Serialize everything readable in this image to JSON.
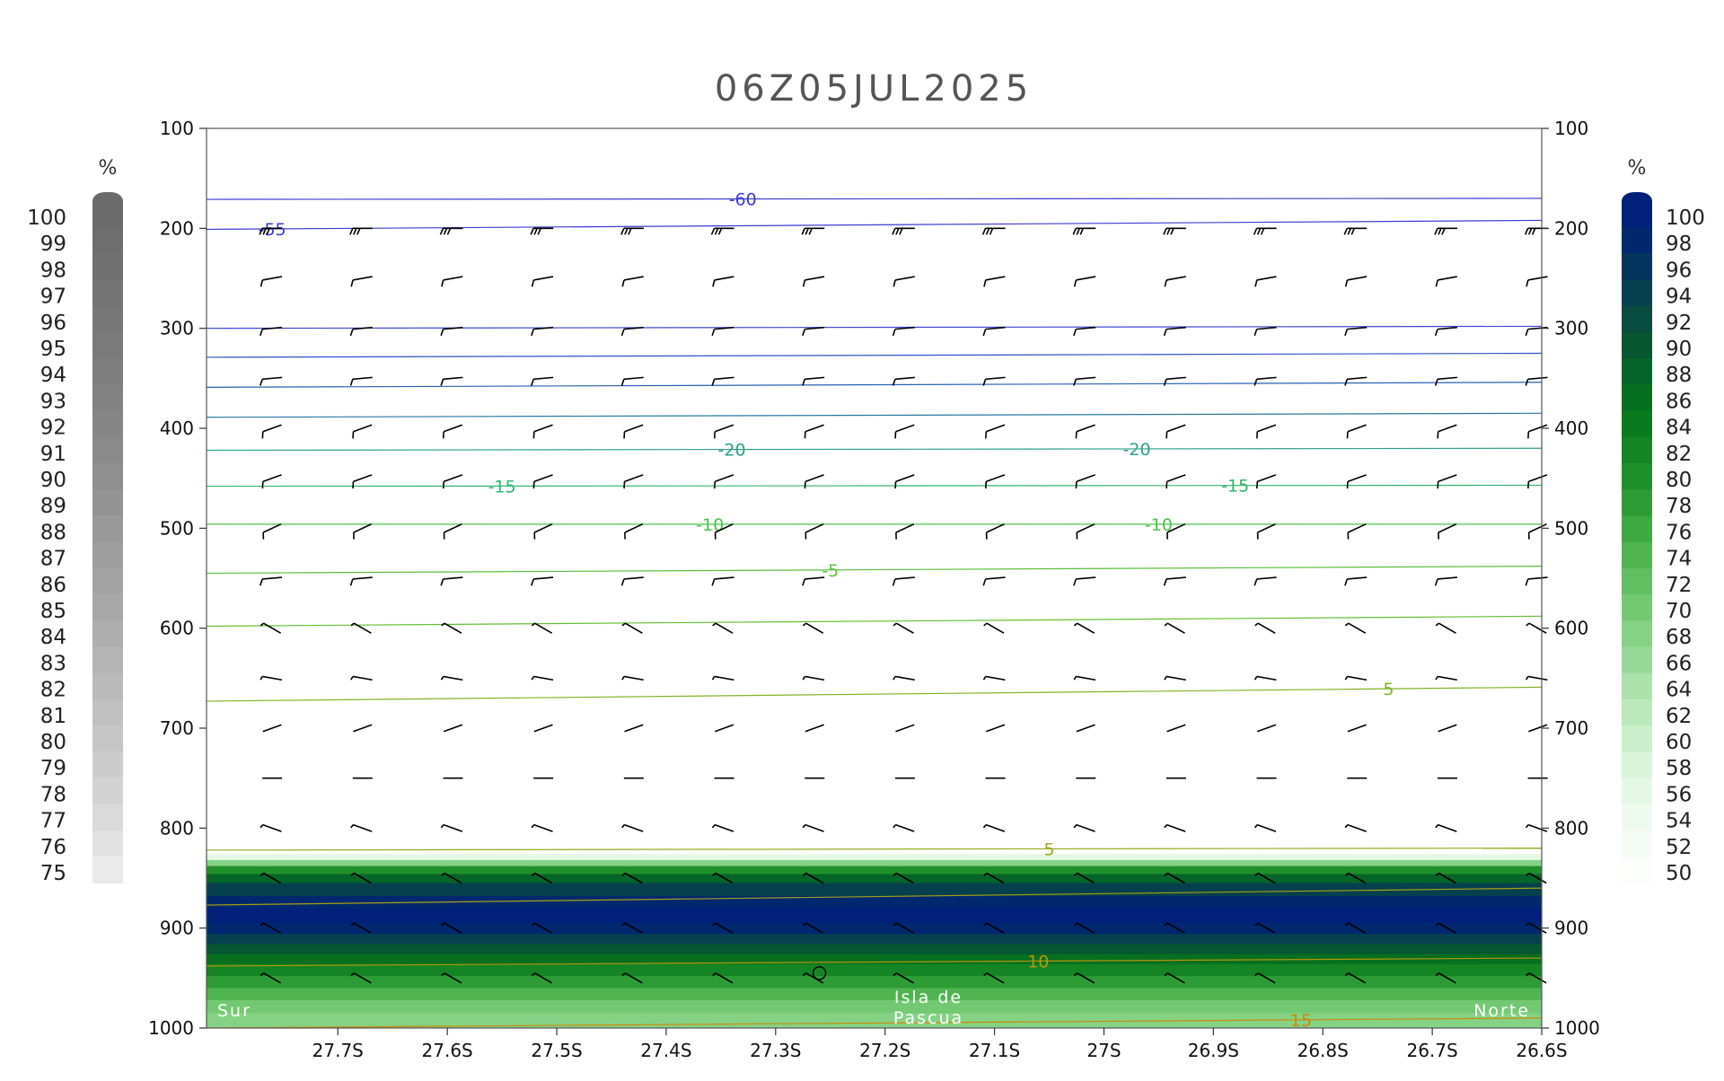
{
  "chart_data": {
    "type": "cross-section",
    "title": "06Z05JUL2025",
    "x_ticks": [
      "27.7S",
      "27.6S",
      "27.5S",
      "27.4S",
      "27.3S",
      "27.2S",
      "27.1S",
      "27S",
      "26.9S",
      "26.8S",
      "26.7S",
      "26.6S"
    ],
    "x_tick_values": [
      -27.7,
      -27.6,
      -27.5,
      -27.4,
      -27.3,
      -27.2,
      -27.1,
      -27.0,
      -26.9,
      -26.8,
      -26.7,
      -26.6
    ],
    "xlim": [
      -27.82,
      -26.6
    ],
    "y_ticks_left": [
      "100",
      "200",
      "300",
      "400",
      "500",
      "600",
      "700",
      "800",
      "900",
      "1000"
    ],
    "y_ticks_right": [
      "100",
      "200",
      "300",
      "400",
      "500",
      "600",
      "700",
      "800",
      "900",
      "1000"
    ],
    "y_tick_values": [
      100,
      200,
      300,
      400,
      500,
      600,
      700,
      800,
      900,
      1000
    ],
    "ylim": [
      100,
      1000
    ],
    "y_scale": "linear, pressure increasing downward (hPa)",
    "location_labels": {
      "left": "Sur",
      "center": "Isla de\nPascua",
      "right": "Norte"
    },
    "legend_left": {
      "unit": "%",
      "labels": [
        "100",
        "99",
        "98",
        "97",
        "96",
        "95",
        "94",
        "93",
        "92",
        "91",
        "90",
        "89",
        "88",
        "87",
        "86",
        "85",
        "84",
        "83",
        "82",
        "81",
        "80",
        "79",
        "78",
        "77",
        "76",
        "75"
      ],
      "colors": [
        "#6b6b6b",
        "#6e6e6e",
        "#717171",
        "#747474",
        "#777777",
        "#7a7a7a",
        "#7e7e7e",
        "#828282",
        "#868686",
        "#8a8a8a",
        "#8f8f8f",
        "#949494",
        "#999999",
        "#9e9e9e",
        "#a3a3a3",
        "#a8a8a8",
        "#aeaeae",
        "#b4b4b4",
        "#bababa",
        "#c0c0c0",
        "#c6c6c6",
        "#cccccc",
        "#d3d3d3",
        "#dadada",
        "#e2e2e2",
        "#eaeaea"
      ]
    },
    "legend_right": {
      "unit": "%",
      "labels": [
        "100",
        "98",
        "96",
        "94",
        "92",
        "90",
        "88",
        "86",
        "84",
        "82",
        "80",
        "78",
        "76",
        "74",
        "72",
        "70",
        "68",
        "66",
        "64",
        "62",
        "60",
        "58",
        "56",
        "54",
        "52",
        "50"
      ],
      "colors": [
        "#00207a",
        "#00286f",
        "#03355e",
        "#06404f",
        "#084b3f",
        "#065632",
        "#056428",
        "#066f20",
        "#0a7a1f",
        "#148424",
        "#20902c",
        "#2e9c36",
        "#3ea842",
        "#4fb450",
        "#60bf60",
        "#72c972",
        "#85d285",
        "#97da97",
        "#aae2aa",
        "#bbe9bb",
        "#cbefcb",
        "#d9f4d9",
        "#e5f8e5",
        "#eefaee",
        "#f5fcf5",
        "#fbfefb"
      ]
    },
    "humidity_layers": [
      {
        "p_top": 822,
        "p_bottom": 830,
        "rh": "55"
      },
      {
        "p_top": 830,
        "p_bottom": 840,
        "rh": "78"
      },
      {
        "p_top": 840,
        "p_bottom": 855,
        "rh": "88"
      },
      {
        "p_top": 855,
        "p_bottom": 905,
        "rh": "96-100"
      },
      {
        "p_top": 905,
        "p_bottom": 935,
        "rh": "90"
      },
      {
        "p_top": 935,
        "p_bottom": 960,
        "rh": "80"
      },
      {
        "p_top": 960,
        "p_bottom": 1000,
        "rh": "66-74"
      }
    ],
    "contour_labels": [
      "-60",
      "-55",
      "-20",
      "-20",
      "-15",
      "-15",
      "-10",
      "-10",
      "-5",
      "5",
      "5",
      "10",
      "15"
    ],
    "isotherms": [
      {
        "label": "-60",
        "color": "#3c3cd2",
        "p": [
          171,
          170
        ],
        "label_x": [
          -27.33
        ]
      },
      {
        "label": "-55",
        "color": "#3c3cd2",
        "p": [
          201,
          192
        ],
        "label_x": [
          -27.76
        ]
      },
      {
        "label": "",
        "color": "#3c46d2",
        "p": [
          300,
          298
        ],
        "label_x": []
      },
      {
        "label": "",
        "color": "#3050c8",
        "p": [
          329,
          325
        ],
        "label_x": []
      },
      {
        "label": "",
        "color": "#2860b4",
        "p": [
          359,
          354
        ],
        "label_x": []
      },
      {
        "label": "",
        "color": "#2878a0",
        "p": [
          389,
          385
        ],
        "label_x": []
      },
      {
        "label": "-20",
        "color": "#2ea08c",
        "p": [
          422,
          420
        ],
        "label_x": [
          -27.34,
          -26.97
        ]
      },
      {
        "label": "-15",
        "color": "#32b46e",
        "p": [
          458,
          457
        ],
        "label_x": [
          -27.55,
          -26.88
        ]
      },
      {
        "label": "-10",
        "color": "#4cc24e",
        "p": [
          496,
          496
        ],
        "label_x": [
          -27.36,
          -26.95
        ]
      },
      {
        "label": "-5",
        "color": "#5cbe3c",
        "p": [
          545,
          538
        ],
        "label_x": [
          -27.25
        ]
      },
      {
        "label": "",
        "color": "#66be32",
        "p": [
          598,
          588
        ],
        "label_x": []
      },
      {
        "label": "5",
        "color": "#82b428",
        "p": [
          673,
          659
        ],
        "label_x": [
          -26.74
        ]
      },
      {
        "label": "5",
        "color": "#9aaa20",
        "p": [
          822,
          820
        ],
        "label_x": [
          -27.05
        ]
      },
      {
        "label": "",
        "color": "#a8a014",
        "p": [
          877,
          860
        ],
        "label_x": []
      },
      {
        "label": "10",
        "color": "#b4960a",
        "p": [
          938,
          930
        ],
        "label_x": [
          -27.06
        ]
      },
      {
        "label": "15",
        "color": "#c88c0a",
        "p": [
          1000,
          990
        ],
        "label_x": [
          -26.82
        ]
      }
    ],
    "wind_levels_hpa": [
      200,
      250,
      300,
      350,
      400,
      450,
      500,
      550,
      600,
      650,
      700,
      750,
      800,
      850,
      900,
      950
    ],
    "wind_directions_deg": [
      270,
      260,
      265,
      265,
      250,
      250,
      245,
      265,
      300,
      280,
      250,
      270,
      290,
      300,
      300,
      300
    ],
    "wind_barb_flags": [
      "3 full",
      "1 full",
      "1 full",
      "1 full",
      "1 full",
      "1 full",
      "1 full",
      "1 full",
      "half",
      "half",
      "none",
      "none",
      "half",
      "half",
      "half",
      "half"
    ],
    "grid": false
  }
}
